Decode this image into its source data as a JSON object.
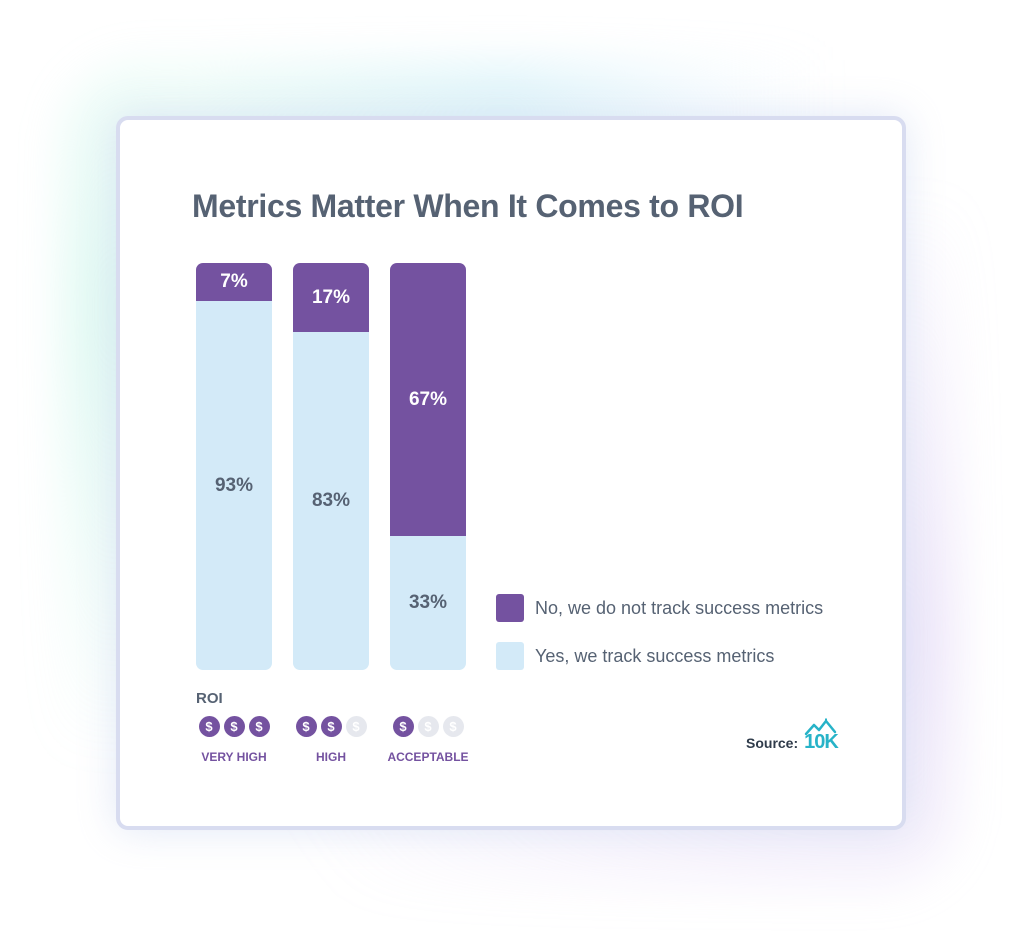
{
  "chart_data": {
    "type": "bar",
    "stacked": true,
    "title": "Metrics Matter When It Comes to ROI",
    "categories": [
      "VERY HIGH",
      "HIGH",
      "ACCEPTABLE"
    ],
    "series": [
      {
        "name": "No, we do not track success metrics",
        "values": [
          7,
          17,
          67
        ],
        "labels": [
          "7%",
          "17%",
          "67%"
        ],
        "color": "#7452a0"
      },
      {
        "name": "Yes, we track success metrics",
        "values": [
          93,
          83,
          33
        ],
        "labels": [
          "93%",
          "83%",
          "33%"
        ],
        "color": "#d3eaf8"
      }
    ],
    "ylim": [
      0,
      100
    ],
    "legend_position": "right",
    "grid": false
  },
  "roi": {
    "label": "ROI",
    "ratings": [
      {
        "filled": 3,
        "total": 3,
        "symbol": "$"
      },
      {
        "filled": 2,
        "total": 3,
        "symbol": "$"
      },
      {
        "filled": 1,
        "total": 3,
        "symbol": "$"
      }
    ]
  },
  "source": {
    "label": "Source:",
    "logo_text": "10K",
    "logo_icon": "mountain-house-icon"
  }
}
